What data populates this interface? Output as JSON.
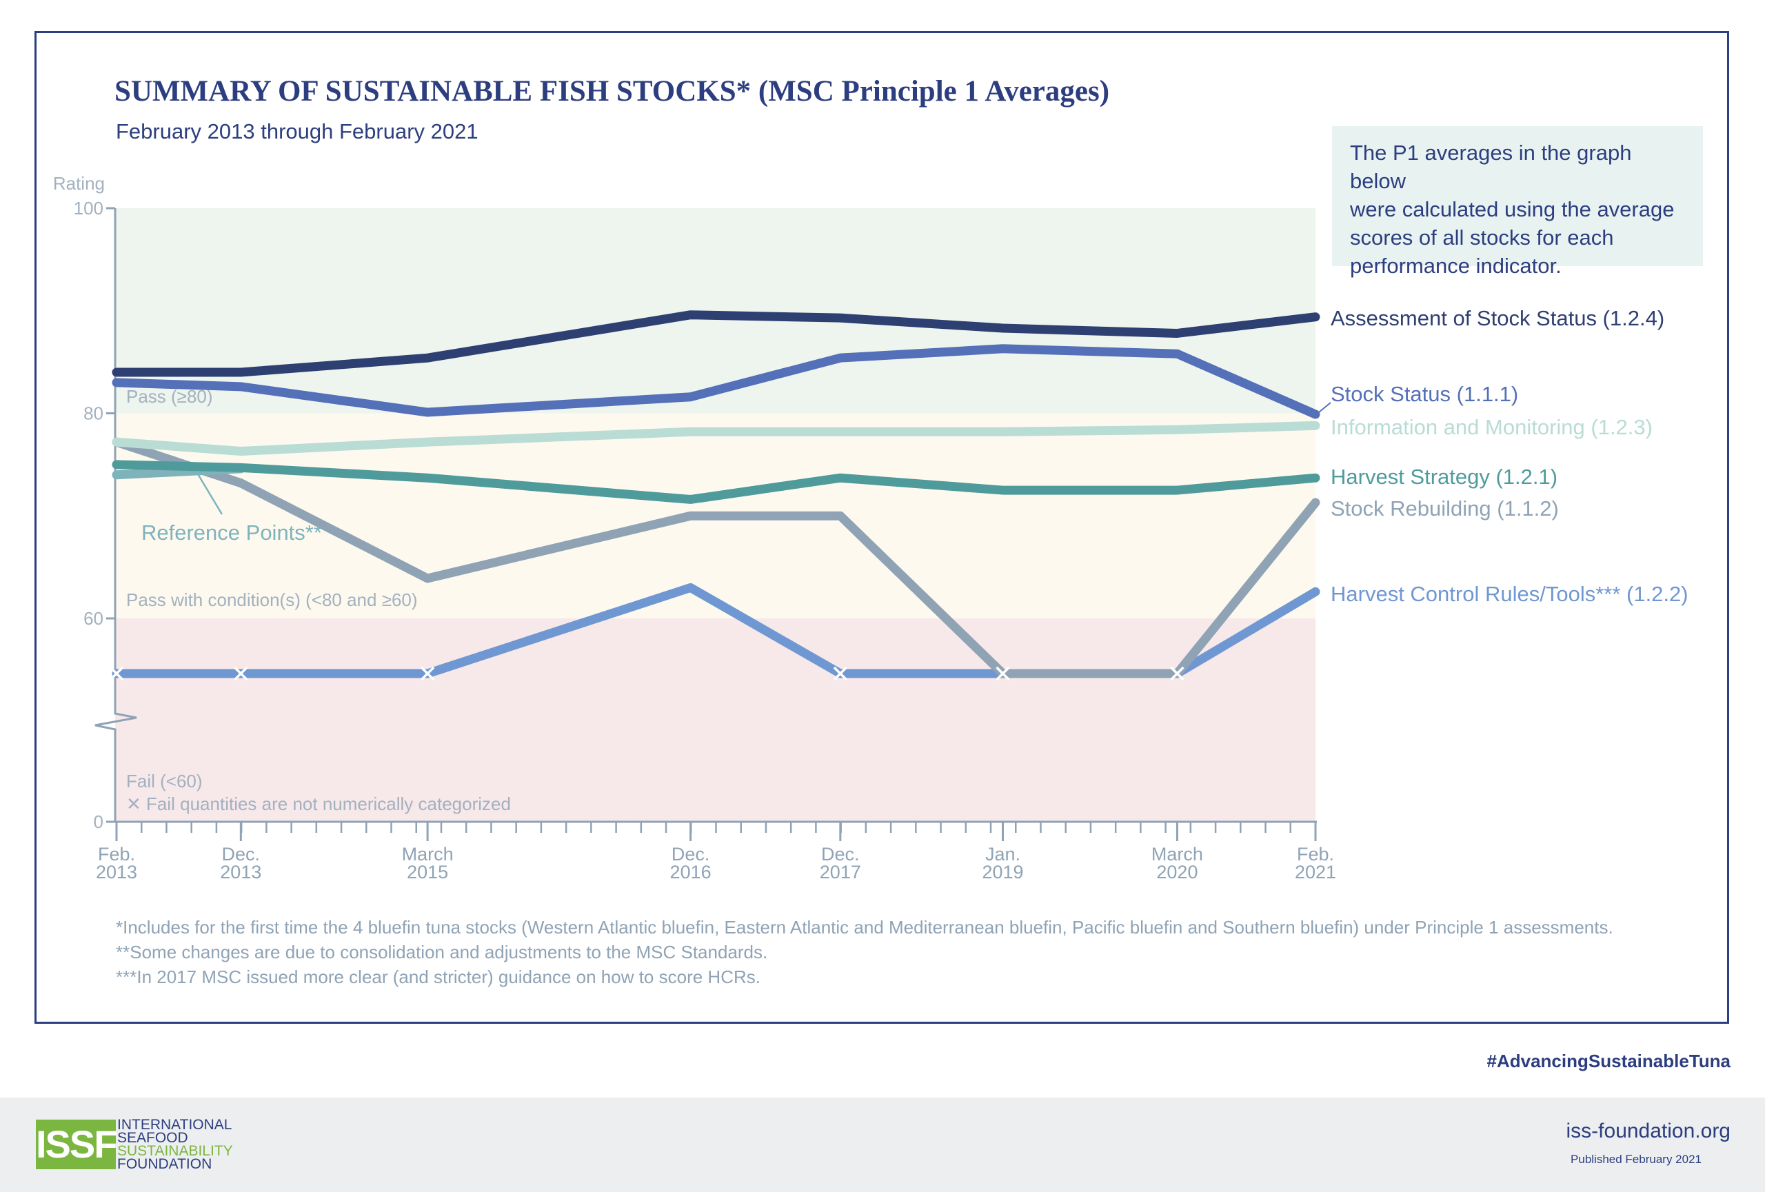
{
  "title": "SUMMARY OF SUSTAINABLE FISH STOCKS* (MSC Principle 1 Averages)",
  "subtitle": "February 2013 through February 2021",
  "note": [
    "The P1 averages in the graph below",
    "were calculated using the average",
    "scores of all stocks for each",
    "performance indicator."
  ],
  "footnotes": [
    "*Includes for the first time the 4 bluefin tuna stocks (Western Atlantic bluefin, Eastern Atlantic and Mediterranean bluefin, Pacific bluefin and Southern bluefin) under Principle 1 assessments.",
    "**Some changes are due to consolidation and adjustments to the MSC Standards.",
    "***In 2017 MSC issued more clear (and stricter) guidance on how to score HCRs."
  ],
  "hashtag": "#AdvancingSustainableTuna",
  "org": {
    "logo_text": "ISSF",
    "name_lines": [
      "INTERNATIONAL",
      "SEAFOOD",
      "SUSTAINABILITY",
      "FOUNDATION"
    ],
    "website": "iss-foundation.org",
    "published": "Published February 2021"
  },
  "colors": {
    "assessment": "#2e3f72",
    "stock_status": "#5470b8",
    "info": "#b9dcd5",
    "harvest_strategy": "#4f9b9b",
    "rebuilding": "#8fa3b5",
    "hcr": "#6f97d1",
    "reference": "#7fb3bc",
    "band_pass": "#eef5ee",
    "band_condition": "#fdf9ef",
    "band_fail": "#f7e8ea"
  },
  "chart_data": {
    "type": "line",
    "ylabel": "Rating",
    "y_ticks": [
      0,
      60,
      80,
      100
    ],
    "ylim": [
      0,
      100
    ],
    "axis_break": true,
    "x_labels": [
      {
        "month": "Feb.",
        "year": "2013",
        "date": "2013-02"
      },
      {
        "month": "Dec.",
        "year": "2013",
        "date": "2013-12"
      },
      {
        "month": "March",
        "year": "2015",
        "date": "2015-03"
      },
      {
        "month": "Dec.",
        "year": "2016",
        "date": "2016-12"
      },
      {
        "month": "Dec.",
        "year": "2017",
        "date": "2017-12"
      },
      {
        "month": "Jan.",
        "year": "2019",
        "date": "2019-01"
      },
      {
        "month": "March",
        "year": "2020",
        "date": "2020-03"
      },
      {
        "month": "Feb.",
        "year": "2021",
        "date": "2021-02"
      }
    ],
    "bands": [
      {
        "label": "Pass (≥80)",
        "from": 80,
        "to": 100
      },
      {
        "label": "Pass with condition(s) (<80 and ≥60)",
        "from": 60,
        "to": 80
      },
      {
        "label": "Fail (<60)",
        "from": 0,
        "to": 60
      }
    ],
    "fail_note": "Fail quantities are not numerically categorized",
    "series": [
      {
        "name": "Assessment of Stock Status (1.2.4)",
        "color_key": "assessment",
        "dates": [
          "2013-02",
          "2013-12",
          "2015-03",
          "2016-12",
          "2017-12",
          "2019-01",
          "2020-03",
          "2021-02"
        ],
        "values": [
          84.0,
          84.0,
          85.4,
          89.6,
          89.3,
          88.3,
          87.8,
          89.4
        ]
      },
      {
        "name": "Stock Status (1.1.1)",
        "color_key": "stock_status",
        "dates": [
          "2013-02",
          "2013-12",
          "2015-03",
          "2016-12",
          "2017-12",
          "2019-01",
          "2020-03",
          "2021-02"
        ],
        "values": [
          83.0,
          82.6,
          80.1,
          81.6,
          85.4,
          86.3,
          85.8,
          79.9
        ]
      },
      {
        "name": "Information and Monitoring (1.2.3)",
        "color_key": "info",
        "dates": [
          "2013-02",
          "2013-12",
          "2015-03",
          "2016-12",
          "2017-12",
          "2019-01",
          "2020-03",
          "2021-02"
        ],
        "values": [
          77.2,
          76.3,
          77.2,
          78.2,
          78.2,
          78.2,
          78.4,
          78.8
        ]
      },
      {
        "name": "Harvest Strategy (1.2.1)",
        "color_key": "harvest_strategy",
        "dates": [
          "2013-02",
          "2013-12",
          "2015-03",
          "2016-12",
          "2017-12",
          "2019-01",
          "2020-03",
          "2021-02"
        ],
        "values": [
          75.0,
          74.7,
          73.7,
          71.6,
          73.7,
          72.5,
          72.5,
          73.7
        ]
      },
      {
        "name": "Stock Rebuilding (1.1.2)",
        "color_key": "rebuilding",
        "dates": [
          "2013-02",
          "2013-12",
          "2015-03",
          "2016-12",
          "2017-12",
          "2019-01",
          "2020-03",
          "2021-02"
        ],
        "values": [
          77.2,
          73.2,
          63.9,
          70.0,
          70.0,
          "fail",
          "fail",
          71.3
        ]
      },
      {
        "name": "Harvest Control Rules/Tools*** (1.2.2)",
        "color_key": "hcr",
        "dates": [
          "2013-02",
          "2013-12",
          "2015-03",
          "2016-12",
          "2017-12",
          "2019-01",
          "2020-03",
          "2021-02"
        ],
        "values": [
          "fail",
          "fail",
          "fail",
          63.0,
          "fail",
          "fail",
          "fail",
          62.6
        ]
      },
      {
        "name": "Reference Points**",
        "color_key": "reference",
        "dates": [
          "2013-02",
          "2013-12"
        ],
        "values": [
          74.0,
          74.6
        ]
      }
    ]
  }
}
